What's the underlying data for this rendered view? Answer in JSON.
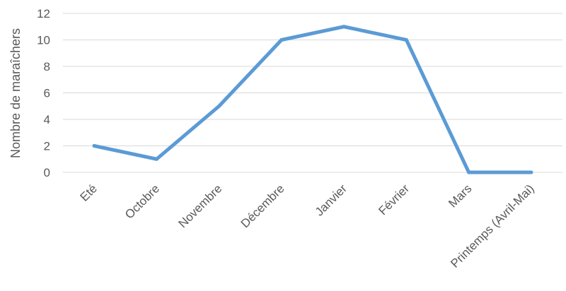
{
  "chart_data": {
    "type": "line",
    "title": "",
    "xlabel": "",
    "ylabel": "Nombre de maraîchers",
    "categories": [
      "Eté",
      "Octobre",
      "Novembre",
      "Décembre",
      "Janvier",
      "Février",
      "Mars",
      "Printemps (Avril-Mai)"
    ],
    "series": [
      {
        "values": [
          2,
          1,
          5,
          10,
          11,
          10,
          0,
          0
        ],
        "color": "#5b9bd5"
      }
    ],
    "ylim": [
      0,
      12
    ],
    "yticks": [
      0,
      2,
      4,
      6,
      8,
      10,
      12
    ],
    "ytick_labels": [
      "0",
      "2",
      "4",
      "6",
      "8",
      "10",
      "12"
    ],
    "grid": true,
    "legend": "none"
  }
}
